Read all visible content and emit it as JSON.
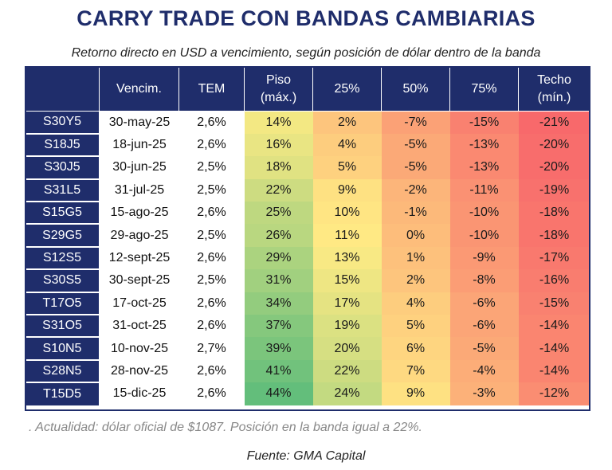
{
  "title": "CARRY TRADE CON BANDAS CAMBIARIAS",
  "subtitle": "Retorno directo en USD a vencimiento, según posición de dólar dentro de la banda",
  "headers": [
    {
      "line1": "",
      "line2": ""
    },
    {
      "line1": "Vencim.",
      "line2": ""
    },
    {
      "line1": "TEM",
      "line2": ""
    },
    {
      "line1": "Piso",
      "line2": "(máx.)"
    },
    {
      "line1": "25%",
      "line2": ""
    },
    {
      "line1": "50%",
      "line2": ""
    },
    {
      "line1": "75%",
      "line2": ""
    },
    {
      "line1": "Techo",
      "line2": "(mín.)"
    }
  ],
  "rows": [
    {
      "ticker": "S30Y5",
      "vencim": "30-may-25",
      "tem": "2,6%",
      "piso": "14%",
      "p25": "2%",
      "p50": "-7%",
      "p75": "-15%",
      "techo": "-21%"
    },
    {
      "ticker": "S18J5",
      "vencim": "18-jun-25",
      "tem": "2,6%",
      "piso": "16%",
      "p25": "4%",
      "p50": "-5%",
      "p75": "-13%",
      "techo": "-20%"
    },
    {
      "ticker": "S30J5",
      "vencim": "30-jun-25",
      "tem": "2,5%",
      "piso": "18%",
      "p25": "5%",
      "p50": "-5%",
      "p75": "-13%",
      "techo": "-20%"
    },
    {
      "ticker": "S31L5",
      "vencim": "31-jul-25",
      "tem": "2,5%",
      "piso": "22%",
      "p25": "9%",
      "p50": "-2%",
      "p75": "-11%",
      "techo": "-19%"
    },
    {
      "ticker": "S15G5",
      "vencim": "15-ago-25",
      "tem": "2,6%",
      "piso": "25%",
      "p25": "10%",
      "p50": "-1%",
      "p75": "-10%",
      "techo": "-18%"
    },
    {
      "ticker": "S29G5",
      "vencim": "29-ago-25",
      "tem": "2,5%",
      "piso": "26%",
      "p25": "11%",
      "p50": "0%",
      "p75": "-10%",
      "techo": "-18%"
    },
    {
      "ticker": "S12S5",
      "vencim": "12-sept-25",
      "tem": "2,6%",
      "piso": "29%",
      "p25": "13%",
      "p50": "1%",
      "p75": "-9%",
      "techo": "-17%"
    },
    {
      "ticker": "S30S5",
      "vencim": "30-sept-25",
      "tem": "2,5%",
      "piso": "31%",
      "p25": "15%",
      "p50": "2%",
      "p75": "-8%",
      "techo": "-16%"
    },
    {
      "ticker": "T17O5",
      "vencim": "17-oct-25",
      "tem": "2,6%",
      "piso": "34%",
      "p25": "17%",
      "p50": "4%",
      "p75": "-6%",
      "techo": "-15%"
    },
    {
      "ticker": "S31O5",
      "vencim": "31-oct-25",
      "tem": "2,6%",
      "piso": "37%",
      "p25": "19%",
      "p50": "5%",
      "p75": "-6%",
      "techo": "-14%"
    },
    {
      "ticker": "S10N5",
      "vencim": "10-nov-25",
      "tem": "2,7%",
      "piso": "39%",
      "p25": "20%",
      "p50": "6%",
      "p75": "-5%",
      "techo": "-14%"
    },
    {
      "ticker": "S28N5",
      "vencim": "28-nov-25",
      "tem": "2,6%",
      "piso": "41%",
      "p25": "22%",
      "p50": "7%",
      "p75": "-4%",
      "techo": "-14%"
    },
    {
      "ticker": "T15D5",
      "vencim": "15-dic-25",
      "tem": "2,6%",
      "piso": "44%",
      "p25": "24%",
      "p50": "9%",
      "p75": "-3%",
      "techo": "-12%"
    }
  ],
  "note": ". Actualidad: dólar oficial de $1087. Posición en la banda igual a 22%.",
  "source": "Fuente: GMA Capital",
  "colors": {
    "header_bg": "#1f2d6b",
    "heat_red": "#f8696b",
    "heat_yellow": "#ffeb84",
    "heat_green": "#63be7b"
  }
}
